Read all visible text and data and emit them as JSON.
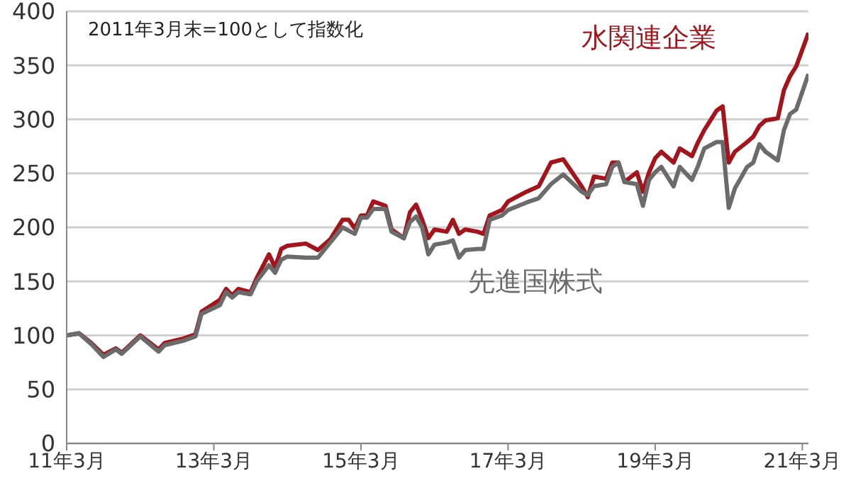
{
  "chart_data": {
    "type": "line",
    "annotations": [
      "2011年3月末=100として指数化"
    ],
    "x": [
      "2011-03",
      "2011-05",
      "2011-07",
      "2011-09",
      "2011-11",
      "2011-12",
      "2012-03",
      "2012-06",
      "2012-07",
      "2012-10",
      "2012-12",
      "2013-01",
      "2013-04",
      "2013-05",
      "2013-06",
      "2013-07",
      "2013-09",
      "2013-10",
      "2013-12",
      "2014-01",
      "2014-02",
      "2014-03",
      "2014-06",
      "2014-08",
      "2014-10",
      "2014-12",
      "2015-01",
      "2015-02",
      "2015-03",
      "2015-04",
      "2015-05",
      "2015-07",
      "2015-08",
      "2015-10",
      "2015-11",
      "2015-12",
      "2016-01",
      "2016-02",
      "2016-03",
      "2016-05",
      "2016-06",
      "2016-07",
      "2016-08",
      "2016-10",
      "2016-11",
      "2016-12",
      "2017-02",
      "2017-03",
      "2017-06",
      "2017-08",
      "2017-10",
      "2017-12",
      "2018-03",
      "2018-04",
      "2018-05",
      "2018-07",
      "2018-08",
      "2018-09",
      "2018-10",
      "2018-12",
      "2019-01",
      "2019-02",
      "2019-03",
      "2019-04",
      "2019-06",
      "2019-07",
      "2019-09",
      "2019-10",
      "2019-11",
      "2020-01",
      "2020-02",
      "2020-03",
      "2020-04",
      "2020-06",
      "2020-07",
      "2020-08",
      "2020-09",
      "2020-11",
      "2020-12",
      "2021-01",
      "2021-02",
      "2021-04"
    ],
    "series": [
      {
        "name": "水関連企業",
        "color": "#a3141c",
        "values": [
          100,
          102,
          93,
          82,
          88,
          84,
          100,
          87,
          93,
          97,
          101,
          122,
          133,
          143,
          137,
          143,
          140,
          153,
          175,
          163,
          180,
          183,
          185,
          179,
          189,
          207,
          207,
          199,
          211,
          211,
          224,
          220,
          198,
          190,
          214,
          221,
          207,
          190,
          198,
          196,
          207,
          194,
          198,
          196,
          194,
          211,
          216,
          224,
          233,
          238,
          260,
          263,
          238,
          228,
          247,
          245,
          260,
          260,
          242,
          251,
          233,
          251,
          264,
          270,
          260,
          273,
          266,
          279,
          290,
          308,
          312,
          260,
          270,
          279,
          284,
          294,
          299,
          301,
          327,
          340,
          349,
          380
        ]
      },
      {
        "name": "先進国株式",
        "color": "#6b6b6b",
        "values": [
          100,
          102,
          92,
          80,
          87,
          83,
          99,
          85,
          91,
          95,
          99,
          120,
          128,
          140,
          135,
          140,
          138,
          150,
          165,
          158,
          170,
          173,
          172,
          172,
          186,
          200,
          197,
          194,
          209,
          209,
          217,
          217,
          196,
          190,
          205,
          210,
          200,
          175,
          184,
          186,
          188,
          172,
          179,
          180,
          180,
          207,
          211,
          216,
          223,
          227,
          240,
          249,
          233,
          230,
          238,
          240,
          256,
          260,
          242,
          240,
          220,
          244,
          251,
          256,
          238,
          256,
          244,
          257,
          273,
          279,
          279,
          218,
          236,
          256,
          260,
          277,
          270,
          262,
          290,
          305,
          309,
          342
        ]
      }
    ],
    "xlim": [
      "2011-03",
      "2021-04"
    ],
    "xticks": [
      {
        "value": "2011-03",
        "label": "11年3月"
      },
      {
        "value": "2013-03",
        "label": "13年3月"
      },
      {
        "value": "2015-03",
        "label": "15年3月"
      },
      {
        "value": "2017-03",
        "label": "17年3月"
      },
      {
        "value": "2019-03",
        "label": "19年3月"
      },
      {
        "value": "2021-03",
        "label": "21年3月"
      }
    ],
    "ylim": [
      0,
      400
    ],
    "yticks": [
      0,
      50,
      100,
      150,
      200,
      250,
      300,
      350,
      400
    ],
    "grid": "y",
    "legend": false,
    "marker": "none",
    "line_style": "solid"
  }
}
